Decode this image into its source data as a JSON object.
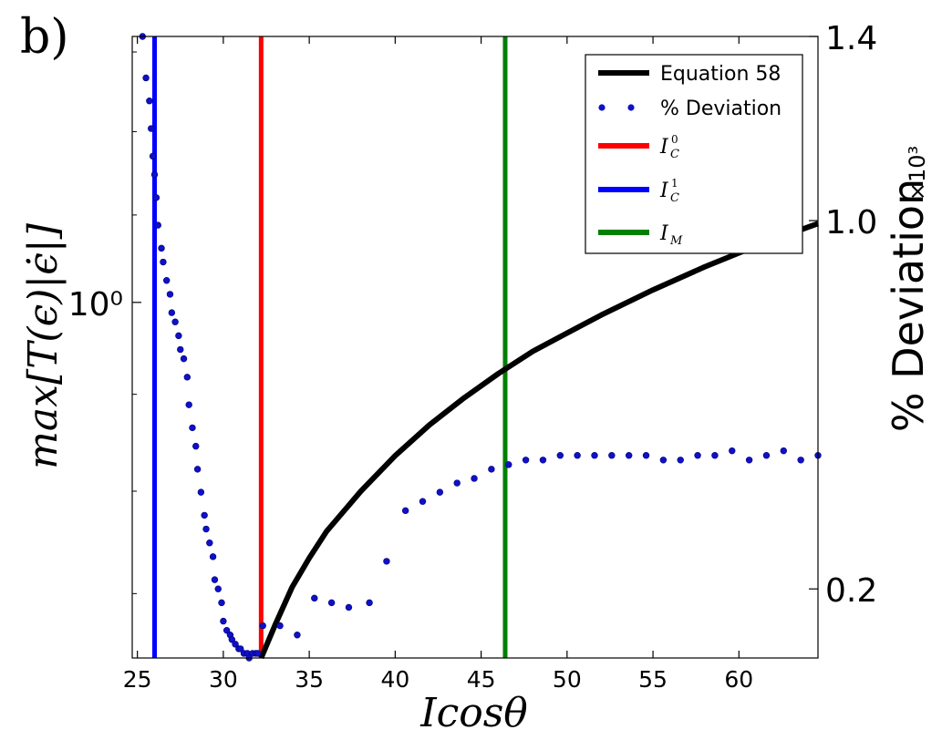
{
  "chart_data": {
    "type": "line",
    "panel_label": "b)",
    "xlabel": "Icosθ",
    "ylabel_left": "max[T(ϵ)|ϵ̇|]",
    "ylabel_right": "% Deviation",
    "ylabel_right_multiplier": "×10³",
    "xlim": [
      24.7,
      64.6
    ],
    "x_ticks": [
      25,
      30,
      35,
      40,
      45,
      50,
      55,
      60
    ],
    "x_tick_labels": [
      "25",
      "30",
      "35",
      "40",
      "45",
      "50",
      "55",
      "60"
    ],
    "y_left_scale": "log",
    "y_left_lim": [
      0.82,
      1.16
    ],
    "y_left_ticks": [
      1.0
    ],
    "y_left_tick_labels": [
      "10⁰"
    ],
    "y_right_lim": [
      0.05,
      1.4
    ],
    "y_right_ticks": [
      0.2,
      1.0,
      1.4
    ],
    "y_right_tick_labels": [
      "0.2",
      "1.0",
      "1.4"
    ],
    "legend_position": "top-right",
    "legend": [
      {
        "label": "Equation 58",
        "color": "#000000",
        "style": "line"
      },
      {
        "label": "% Deviation",
        "color": "#1010c8",
        "style": "dots"
      },
      {
        "label": "I_C^0",
        "color": "#ff0000",
        "style": "line"
      },
      {
        "label": "I_C^1",
        "color": "#0000ff",
        "style": "line"
      },
      {
        "label": "I_M",
        "color": "#008000",
        "style": "line"
      }
    ],
    "vertical_lines": [
      {
        "name": "I_C^0",
        "x": 32.2,
        "color": "#ff0000"
      },
      {
        "name": "I_C^1",
        "x": 26.0,
        "color": "#0000ff"
      },
      {
        "name": "I_M",
        "x": 46.4,
        "color": "#008000"
      }
    ],
    "equation_58": {
      "axis": "left",
      "color": "#000000",
      "x": [
        32.2,
        33,
        34,
        35,
        36,
        38,
        40,
        42,
        44,
        46,
        48,
        50,
        52,
        55,
        58,
        61,
        64.6
      ],
      "y": [
        0.82,
        0.835,
        0.853,
        0.867,
        0.88,
        0.9,
        0.918,
        0.934,
        0.948,
        0.961,
        0.973,
        0.983,
        0.993,
        1.007,
        1.02,
        1.032,
        1.045
      ]
    },
    "percent_deviation": {
      "axis": "right",
      "color": "#1010c8",
      "x": [
        25.3,
        25.5,
        25.7,
        25.8,
        25.9,
        26.0,
        26.1,
        26.2,
        26.4,
        26.5,
        26.7,
        26.9,
        27.0,
        27.2,
        27.4,
        27.5,
        27.7,
        27.9,
        28.0,
        28.2,
        28.4,
        28.5,
        28.7,
        28.9,
        29.0,
        29.2,
        29.4,
        29.5,
        29.7,
        29.9,
        30.0,
        30.2,
        30.4,
        30.5,
        30.7,
        30.9,
        31.0,
        31.2,
        31.4,
        31.5,
        31.7,
        31.9,
        32.0,
        32.3,
        33.3,
        34.3,
        35.3,
        36.3,
        37.3,
        38.5,
        39.5,
        40.6,
        41.6,
        42.6,
        43.6,
        44.6,
        45.6,
        46.6,
        47.6,
        48.6,
        49.6,
        50.6,
        51.6,
        52.6,
        53.6,
        54.6,
        55.6,
        56.6,
        57.6,
        58.6,
        59.6,
        60.6,
        61.6,
        62.6,
        63.6,
        64.6
      ],
      "y": [
        1.4,
        1.31,
        1.26,
        1.2,
        1.14,
        1.1,
        1.05,
        0.99,
        0.94,
        0.91,
        0.87,
        0.84,
        0.8,
        0.78,
        0.75,
        0.72,
        0.7,
        0.66,
        0.6,
        0.55,
        0.51,
        0.46,
        0.41,
        0.36,
        0.33,
        0.3,
        0.27,
        0.22,
        0.2,
        0.17,
        0.13,
        0.11,
        0.1,
        0.09,
        0.08,
        0.07,
        0.07,
        0.06,
        0.06,
        0.05,
        0.06,
        0.06,
        0.06,
        0.12,
        0.12,
        0.1,
        0.18,
        0.17,
        0.16,
        0.17,
        0.26,
        0.37,
        0.39,
        0.41,
        0.43,
        0.44,
        0.46,
        0.47,
        0.48,
        0.48,
        0.49,
        0.49,
        0.49,
        0.49,
        0.49,
        0.49,
        0.48,
        0.48,
        0.49,
        0.49,
        0.5,
        0.48,
        0.49,
        0.5,
        0.48,
        0.49
      ]
    }
  }
}
